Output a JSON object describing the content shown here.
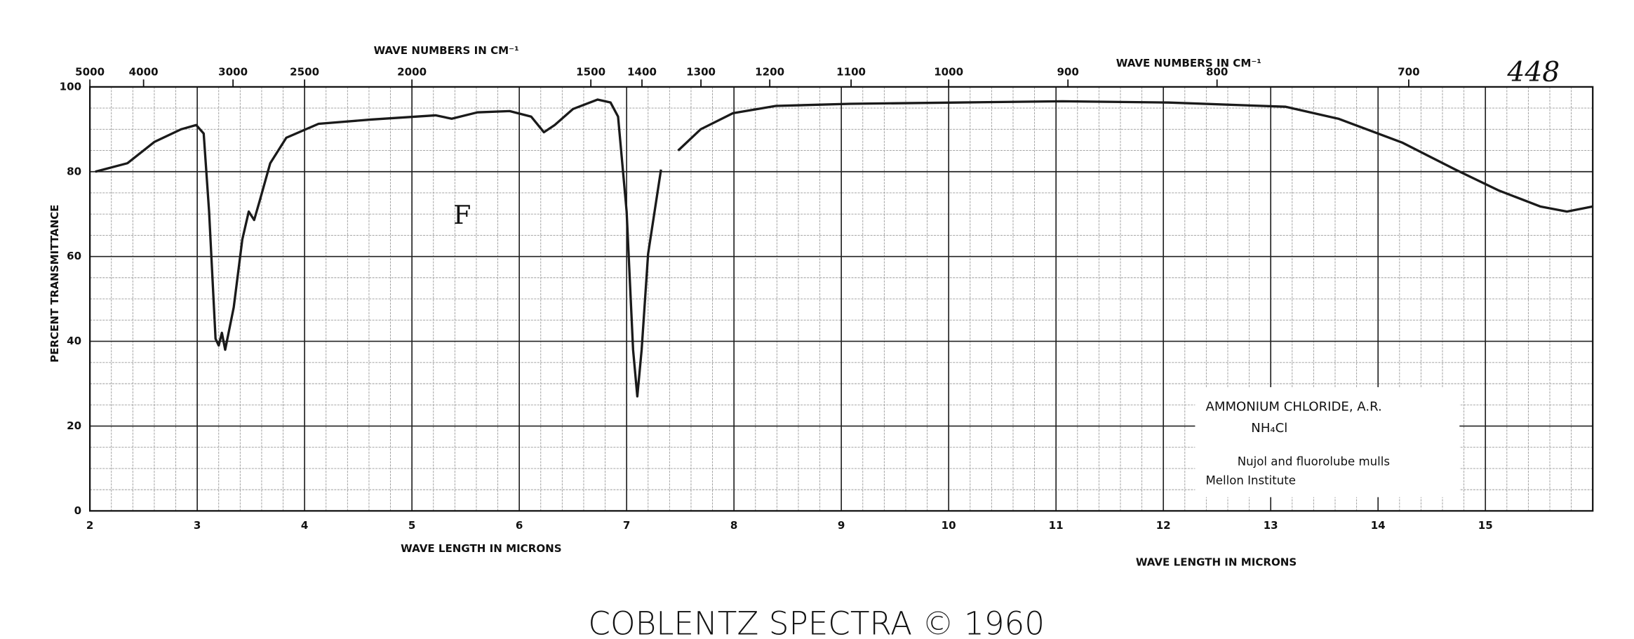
{
  "chart_data": {
    "type": "line",
    "catalog_number": "448",
    "footer": "COBLENTZ SPECTRA © 1960",
    "y_label": "PERCENT TRANSMITTANCE",
    "x_label": "WAVE LENGTH IN MICRONS",
    "x2_label": "WAVE NUMBERS IN CM⁻¹",
    "annotation": "F",
    "sample": {
      "name": "AMMONIUM CHLORIDE, A.R.",
      "formula": "NH₄Cl",
      "method": "Nujol and fluorolube mulls",
      "source": "Mellon Institute"
    },
    "xlim": [
      2,
      16
    ],
    "xticks": [
      2,
      3,
      4,
      5,
      6,
      7,
      8,
      9,
      10,
      11,
      12,
      13,
      14,
      15
    ],
    "x2ticks": [
      5000,
      4000,
      3000,
      2500,
      2000,
      1500,
      1400,
      1300,
      1200,
      1100,
      1000,
      900,
      800,
      700
    ],
    "ylim": [
      0,
      100
    ],
    "yticks": [
      0,
      20,
      40,
      60,
      80,
      100
    ],
    "grid": true,
    "color": "#1a1a1a",
    "x": [
      2.05,
      2.35,
      2.6,
      2.85,
      2.99,
      3.06,
      3.11,
      3.17,
      3.2,
      3.23,
      3.26,
      3.34,
      3.42,
      3.48,
      3.53,
      3.58,
      3.68,
      3.83,
      4.13,
      4.62,
      5.22,
      5.37,
      5.61,
      5.91,
      6.11,
      6.23,
      6.33,
      6.5,
      6.73,
      6.8,
      6.85,
      6.92,
      7.0,
      7.06,
      7.1,
      7.14,
      7.2,
      7.32,
      7.4,
      7.48,
      7.69,
      7.99,
      8.39,
      9.08,
      10.07,
      11.06,
      12.05,
      13.14,
      13.63,
      14.23,
      14.72,
      15.12,
      15.51,
      15.76,
      16.0
    ],
    "values": [
      80,
      82,
      87,
      90,
      91,
      89,
      70.6,
      40.6,
      39,
      42,
      38,
      48,
      64,
      70.6,
      68.6,
      73,
      82,
      88,
      91.3,
      92.3,
      93.3,
      92.5,
      94,
      94.3,
      93,
      89.3,
      91,
      94.8,
      97,
      96.6,
      96.3,
      93,
      70.6,
      38,
      27,
      38,
      60.6,
      80.5,
      null,
      85,
      90,
      93.8,
      95.5,
      96,
      96.3,
      96.6,
      96.3,
      95.3,
      92.5,
      86.8,
      80.5,
      75.6,
      71.8,
      70.6,
      71.8
    ]
  }
}
